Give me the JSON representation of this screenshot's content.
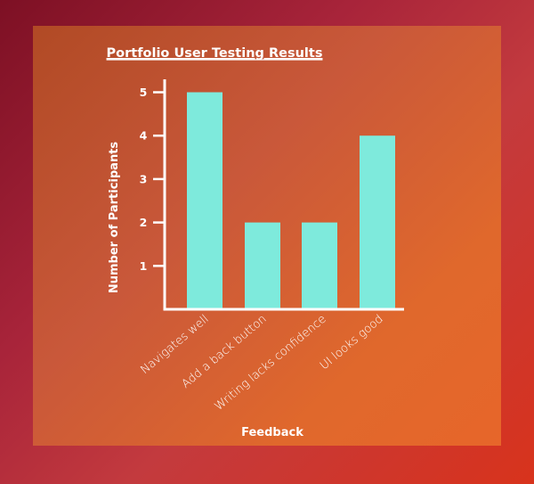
{
  "colors": {
    "background_start": "#7d1024",
    "background_end": "#d8331c",
    "card_start": "#b14a25",
    "card_end": "#e7662a",
    "bar": "#7eeadc",
    "axis": "#ffffff",
    "text": "#ffffff"
  },
  "chart_data": {
    "type": "bar",
    "title": "Portfolio User Testing Results",
    "xlabel": "Feedback",
    "ylabel": "Number of Participants",
    "categories": [
      "Navigates well",
      "Add a back button",
      "Writing lacks confidence",
      "UI looks good"
    ],
    "values": [
      5,
      2,
      2,
      4
    ],
    "yticks": [
      1,
      2,
      3,
      4,
      5
    ],
    "ylim": [
      0,
      5.2
    ],
    "grid": false,
    "legend": "none"
  }
}
